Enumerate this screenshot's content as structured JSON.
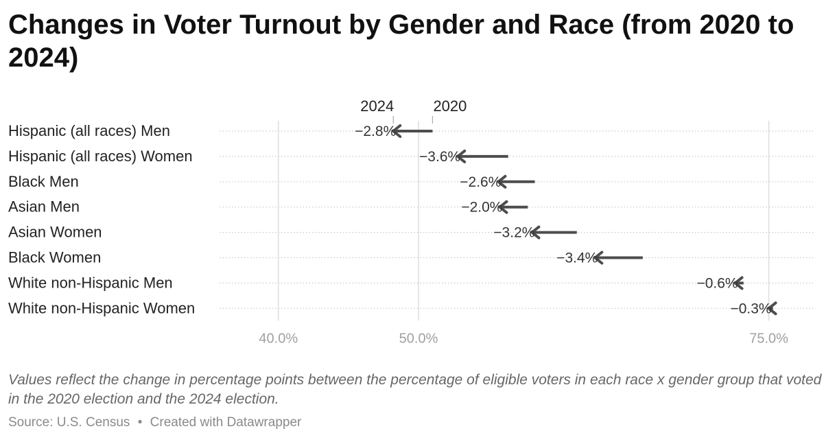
{
  "title": "Changes in Voter Turnout by Gender and Race (from 2020 to 2024)",
  "notes": "Values reflect the change in percentage points between the percentage of eligible voters in each race x gender group that voted in the 2020 election and the 2024 election.",
  "footer": {
    "source": "Source: U.S. Census",
    "separator": "•",
    "credit": "Created with Datawrapper"
  },
  "colors": {
    "arrow": "#4d4d4d",
    "label": "#333333",
    "axis_tick": "#a0a0a0",
    "grid": "#dddddd"
  },
  "chart_data": {
    "type": "arrow-plot",
    "xlim": [
      35.8,
      78.3
    ],
    "x_ticks": [
      {
        "value": 40,
        "label": "40.0%"
      },
      {
        "value": 50,
        "label": "50.0%"
      },
      {
        "value": 75,
        "label": "75.0%"
      }
    ],
    "series": [
      {
        "name": "2020",
        "role": "start"
      },
      {
        "name": "2024",
        "role": "end"
      }
    ],
    "rows": [
      {
        "label": "Hispanic (all races) Men",
        "from": 51.0,
        "to": 48.2,
        "change": "−2.8%"
      },
      {
        "label": "Hispanic (all races) Women",
        "from": 56.4,
        "to": 52.8,
        "change": "−3.6%"
      },
      {
        "label": "Black Men",
        "from": 58.3,
        "to": 55.7,
        "change": "−2.6%"
      },
      {
        "label": "Asian Men",
        "from": 57.8,
        "to": 55.8,
        "change": "−2.0%"
      },
      {
        "label": "Asian Women",
        "from": 61.3,
        "to": 58.1,
        "change": "−3.2%"
      },
      {
        "label": "Black Women",
        "from": 66.0,
        "to": 62.6,
        "change": "−3.4%"
      },
      {
        "label": "White non-Hispanic Men",
        "from": 73.2,
        "to": 72.6,
        "change": "−0.6%"
      },
      {
        "label": "White non-Hispanic Women",
        "from": 75.3,
        "to": 75.0,
        "change": "−0.3%"
      }
    ]
  }
}
